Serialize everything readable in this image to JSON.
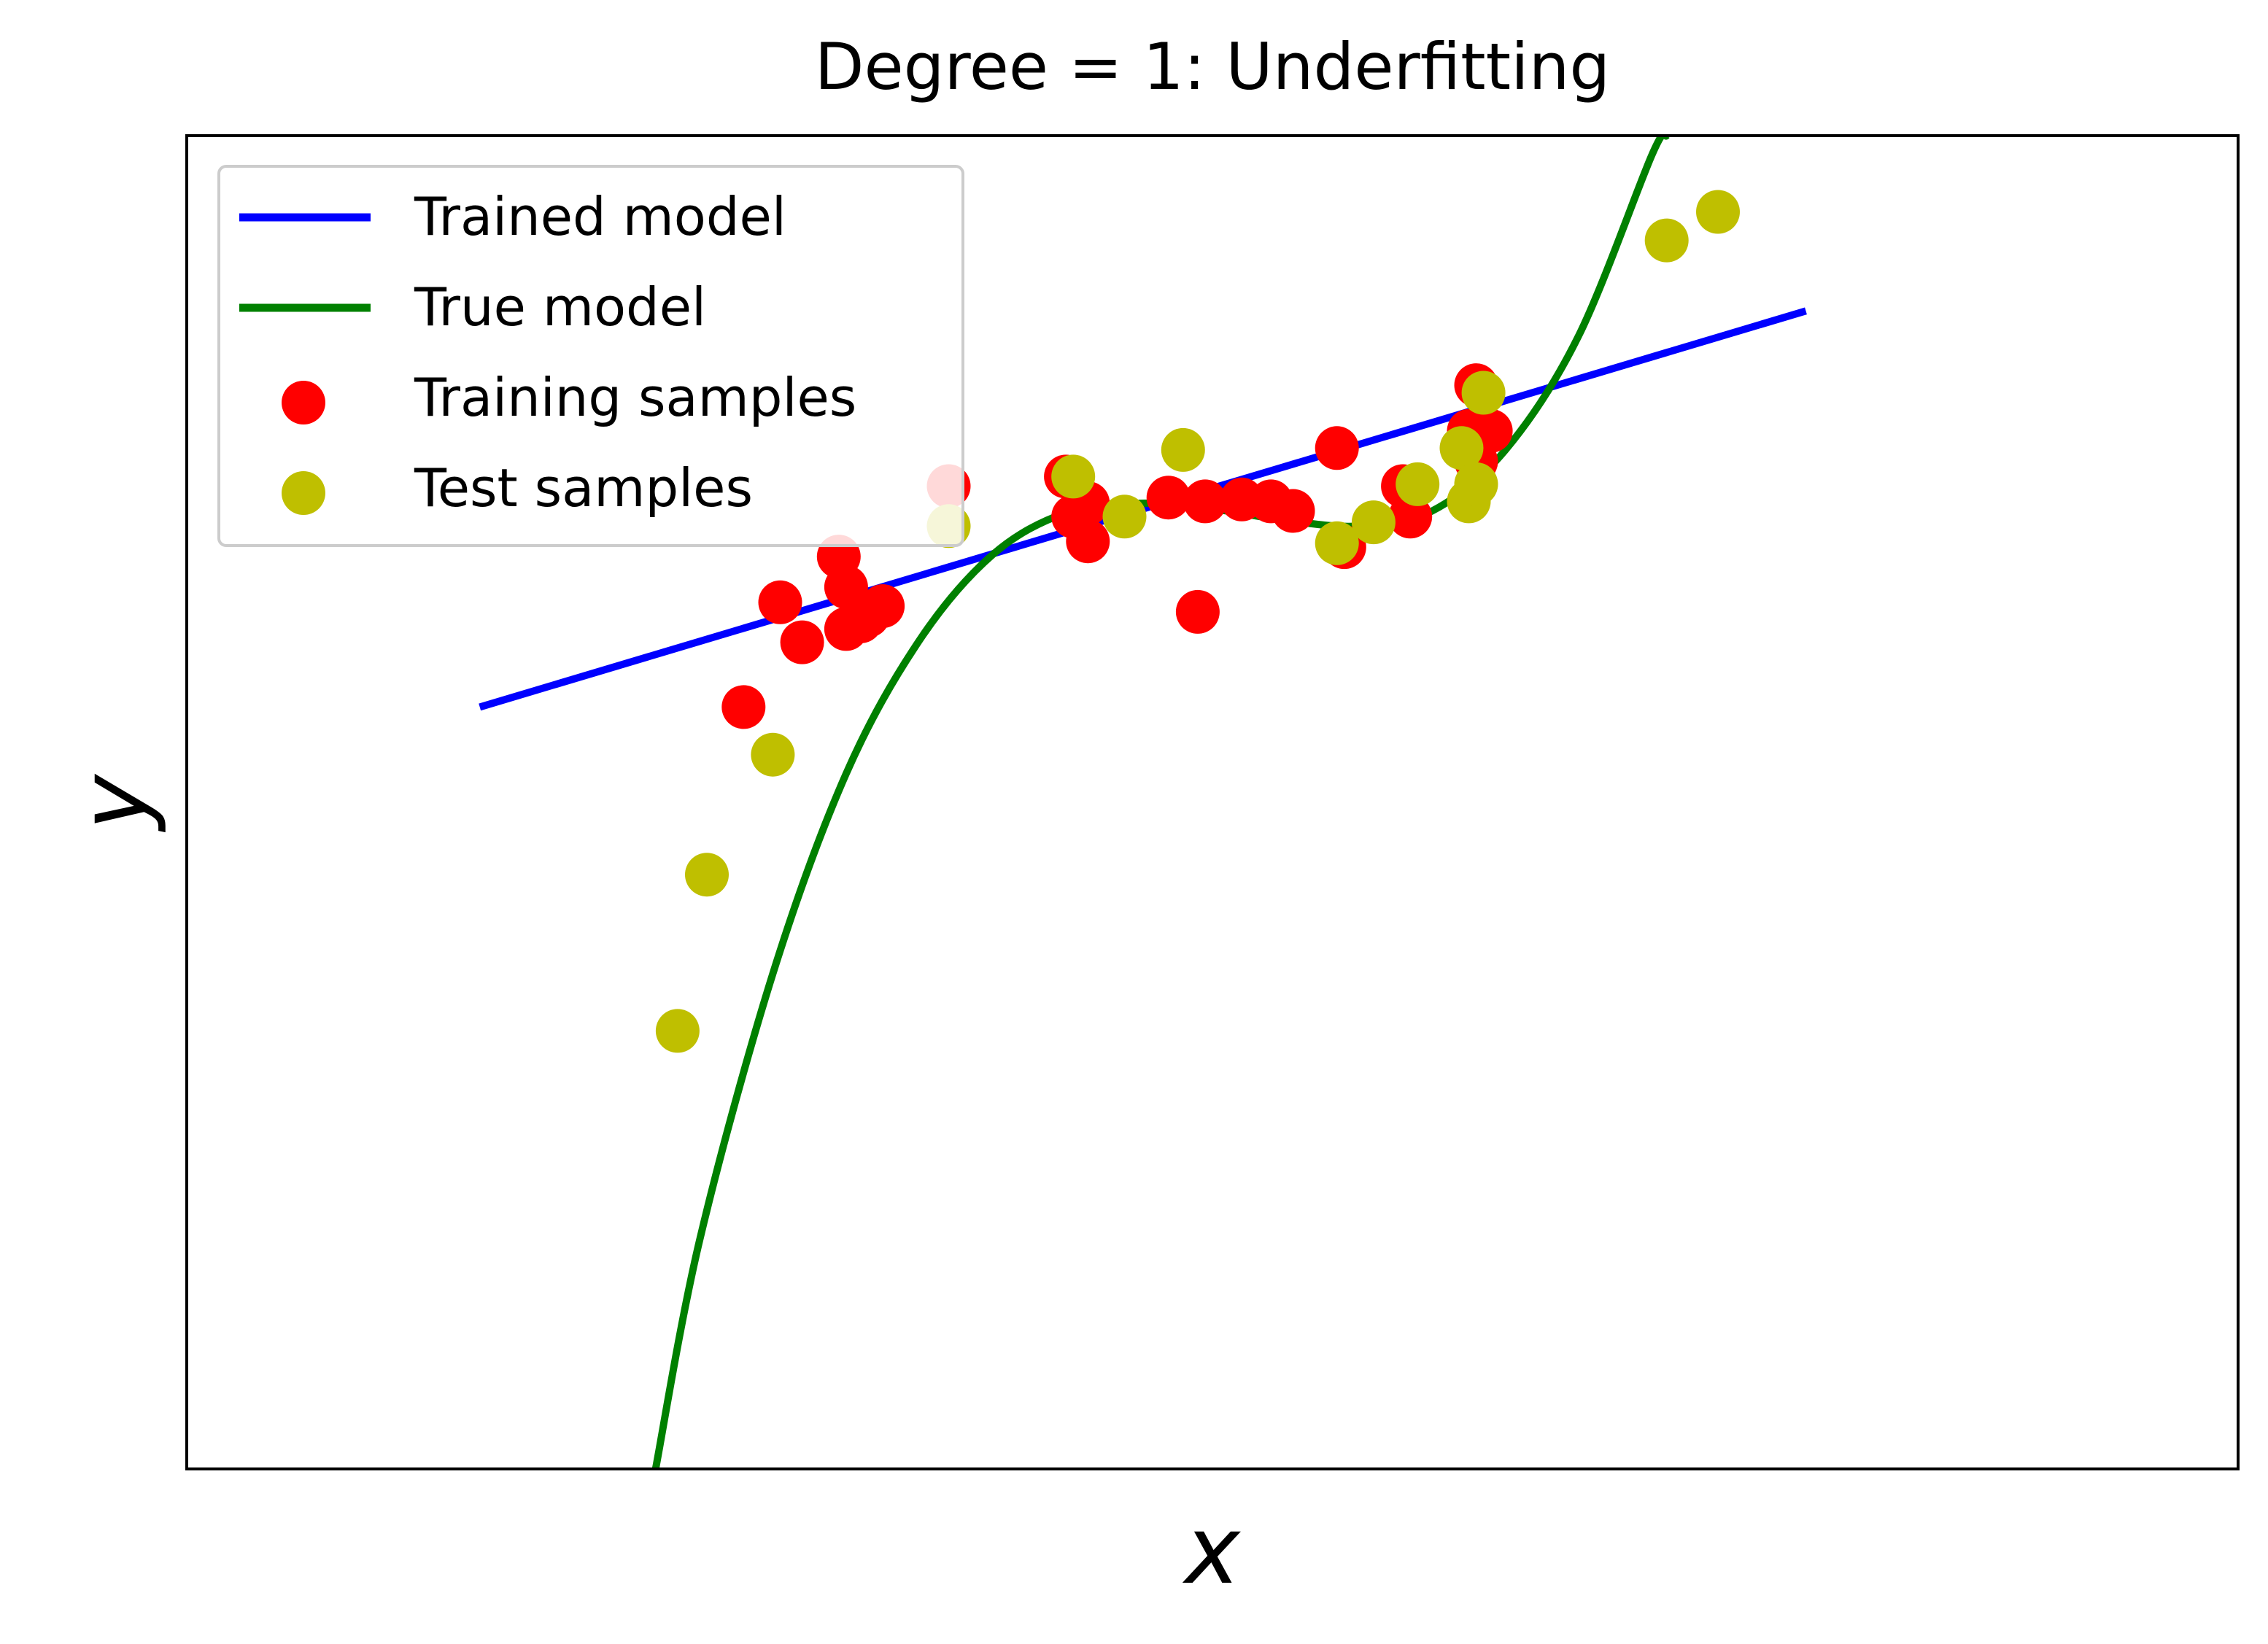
{
  "chart_data": {
    "type": "scatter",
    "title": "Degree = 1: Underfitting",
    "xlabel": "x",
    "ylabel": "y",
    "xlim": [
      -1.4,
      1.4
    ],
    "ylim": [
      -4.5,
      2.5
    ],
    "grid": false,
    "ticks": false,
    "legend_position": "top-left",
    "legend": [
      {
        "label": "Trained model",
        "kind": "line",
        "color": "#0000ff"
      },
      {
        "label": "True model",
        "kind": "line",
        "color": "#008000"
      },
      {
        "label": "Training samples",
        "kind": "marker",
        "color": "#ff0000"
      },
      {
        "label": "Test samples",
        "kind": "marker",
        "color": "#bfbf00"
      }
    ],
    "series": [
      {
        "name": "Trained model",
        "kind": "line",
        "color": "#0000ff",
        "x": [
          -1.0,
          0.81
        ],
        "y": [
          -0.5,
          1.58
        ]
      },
      {
        "name": "True model",
        "kind": "curve",
        "color": "#008000",
        "x": [
          -0.76,
          -0.7,
          -0.6,
          -0.5,
          -0.4,
          -0.3,
          -0.2,
          -0.1,
          0.0,
          0.1,
          0.2,
          0.3,
          0.4,
          0.5,
          0.6,
          0.62
        ],
        "y": [
          -4.5,
          -3.3,
          -1.9,
          -0.85,
          -0.15,
          0.3,
          0.52,
          0.57,
          0.54,
          0.48,
          0.45,
          0.53,
          0.85,
          1.45,
          2.4,
          2.5
        ]
      },
      {
        "name": "Training samples",
        "kind": "scatter",
        "color": "#ff0000",
        "x": [
          -0.64,
          -0.59,
          -0.56,
          -0.51,
          -0.5,
          -0.5,
          -0.48,
          -0.47,
          -0.45,
          -0.36,
          -0.2,
          -0.19,
          -0.17,
          -0.17,
          -0.06,
          -0.02,
          -0.01,
          0.04,
          0.08,
          0.11,
          0.17,
          0.18,
          0.26,
          0.27,
          0.35,
          0.36,
          0.36,
          0.38
        ],
        "y": [
          -0.5,
          0.05,
          -0.16,
          0.29,
          0.13,
          -0.09,
          -0.05,
          -0.02,
          0.03,
          0.66,
          0.71,
          0.5,
          0.37,
          0.57,
          0.6,
          0.0,
          0.58,
          0.59,
          0.58,
          0.53,
          0.86,
          0.34,
          0.66,
          0.5,
          0.95,
          1.19,
          0.79,
          0.95
        ]
      },
      {
        "name": "Test samples",
        "kind": "scatter",
        "color": "#bfbf00",
        "x": [
          -0.73,
          -0.69,
          -0.6,
          -0.36,
          -0.19,
          -0.12,
          -0.04,
          0.17,
          0.22,
          0.28,
          0.34,
          0.35,
          0.36,
          0.37,
          0.62,
          0.69
        ],
        "y": [
          -2.2,
          -1.38,
          -0.75,
          0.45,
          0.71,
          0.5,
          0.85,
          0.36,
          0.47,
          0.67,
          0.86,
          0.58,
          0.67,
          1.15,
          1.95,
          2.1
        ]
      }
    ]
  }
}
